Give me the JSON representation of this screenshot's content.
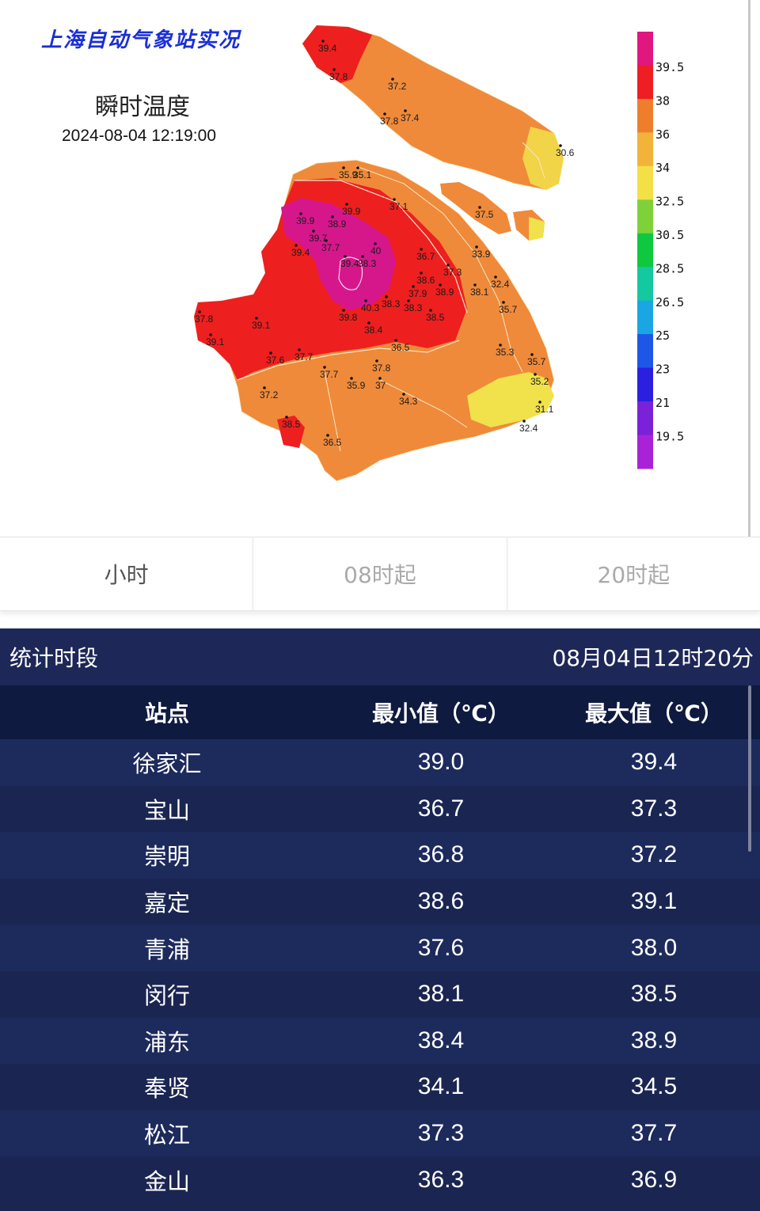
{
  "map": {
    "brand_title": "上海自动气象站实况",
    "title": "瞬时温度",
    "time": "2024-08-04 12:19:00",
    "colors": {
      "red": "#ee1f1f",
      "orange": "#ef8a3a",
      "magenta": "#d6178c",
      "yellow": "#f1e14a"
    },
    "stations": [
      "39.4",
      "37.8",
      "37.2",
      "37.8",
      "37.4",
      "30.6",
      "35.9",
      "35.1",
      "37.1",
      "37.5",
      "39.9",
      "39.9",
      "38.9",
      "39.7",
      "37.7",
      "40",
      "39.4",
      "39.4",
      "38.3",
      "36.7",
      "37.3",
      "33.9",
      "32.4",
      "38.1",
      "35.7",
      "37.9",
      "38.9",
      "38.6",
      "37.8",
      "39.1",
      "39.1",
      "40.3",
      "38.3",
      "38.3",
      "38.5",
      "38.4",
      "39.8",
      "36.5",
      "35.3",
      "35.7",
      "37.6",
      "37.7",
      "37.7",
      "35.9",
      "37",
      "37.8",
      "35.2",
      "31.1",
      "34.3",
      "37.2",
      "32.4",
      "38.5",
      "36.5"
    ]
  },
  "legend": {
    "labels": [
      "39.5",
      "38",
      "36",
      "34",
      "32.5",
      "30.5",
      "28.5",
      "26.5",
      "25",
      "23",
      "21",
      "19.5"
    ],
    "colors": [
      "#e0177f",
      "#ef1e23",
      "#ef7e2c",
      "#f2b33a",
      "#f3e046",
      "#7fd13a",
      "#10c840",
      "#14c8a0",
      "#1aa6e2",
      "#1d57e6",
      "#2b1fe0",
      "#7a22d8",
      "#a823d8"
    ]
  },
  "tabs": [
    {
      "label": "小时",
      "active": true
    },
    {
      "label": "08时起",
      "active": false
    },
    {
      "label": "20时起",
      "active": false
    }
  ],
  "stats": {
    "period_label": "统计时段",
    "period_value": "08月04日12时20分",
    "headers": {
      "station": "站点",
      "min": "最小值（℃）",
      "max": "最大值（℃）"
    },
    "rows": [
      {
        "station": "徐家汇",
        "min": "39.0",
        "max": "39.4"
      },
      {
        "station": "宝山",
        "min": "36.7",
        "max": "37.3"
      },
      {
        "station": "崇明",
        "min": "36.8",
        "max": "37.2"
      },
      {
        "station": "嘉定",
        "min": "38.6",
        "max": "39.1"
      },
      {
        "station": "青浦",
        "min": "37.6",
        "max": "38.0"
      },
      {
        "station": "闵行",
        "min": "38.1",
        "max": "38.5"
      },
      {
        "station": "浦东",
        "min": "38.4",
        "max": "38.9"
      },
      {
        "station": "奉贤",
        "min": "34.1",
        "max": "34.5"
      },
      {
        "station": "松江",
        "min": "37.3",
        "max": "37.7"
      },
      {
        "station": "金山",
        "min": "36.3",
        "max": "36.9"
      }
    ]
  }
}
